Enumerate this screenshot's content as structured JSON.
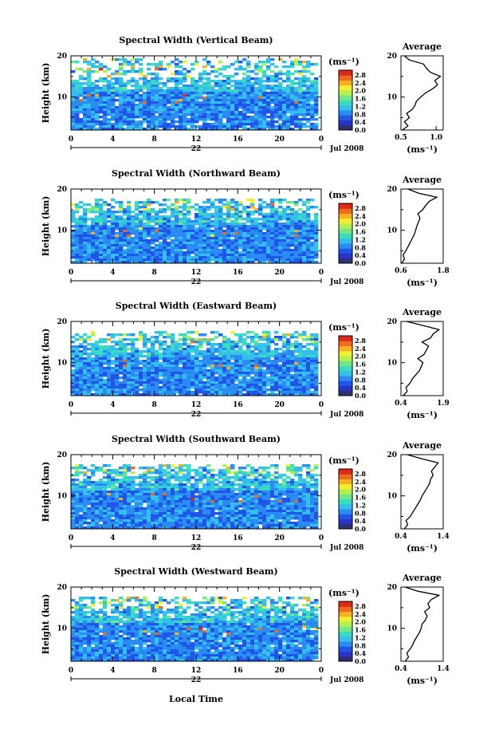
{
  "figure": {
    "xlabel": "Local Time",
    "ylabel": "Height (km)",
    "date_label": "Jul 2008",
    "day_label": "22",
    "unit_label": "(ms⁻¹)",
    "avg_unit_label": "(ms⁻¹)",
    "avg_title": "Average",
    "colorbar_ticks": [
      "0.0",
      "0.4",
      "0.8",
      "1.2",
      "1.6",
      "2.0",
      "2.4",
      "2.8"
    ],
    "colorscale": [
      "#303070",
      "#2a33c8",
      "#1f55e8",
      "#2a8cf2",
      "#33c0ec",
      "#38dcc0",
      "#70e888",
      "#b4f050",
      "#f0f030",
      "#f8b020",
      "#f06c1c",
      "#e02818"
    ]
  },
  "chart_data": [
    {
      "type": "heatmap",
      "title": "Spectral Width (Vertical Beam)",
      "x_ticks": [
        "0",
        "4",
        "8",
        "12",
        "16",
        "20",
        "0"
      ],
      "y_ticks": [
        "10",
        "20"
      ],
      "xlim": [
        0,
        24
      ],
      "ylim": [
        2,
        20
      ],
      "avg_profile": {
        "type": "line",
        "title": "Average",
        "x_ticks": [
          "0.5",
          "1.0"
        ],
        "xlim": [
          0.5,
          1.1
        ],
        "ylim": [
          2,
          20
        ],
        "height": [
          2,
          3,
          4,
          5,
          6,
          7,
          8,
          9,
          10,
          11,
          12,
          13,
          14,
          15,
          16,
          17,
          18,
          19,
          20
        ],
        "value": [
          0.52,
          0.6,
          0.55,
          0.62,
          0.58,
          0.66,
          0.7,
          0.72,
          0.78,
          0.85,
          0.95,
          1.02,
          0.98,
          1.06,
          0.92,
          0.86,
          0.82,
          0.62,
          0.55
        ]
      }
    },
    {
      "type": "heatmap",
      "title": "Spectral Width (Northward Beam)",
      "x_ticks": [
        "0",
        "4",
        "8",
        "12",
        "16",
        "20",
        "0"
      ],
      "y_ticks": [
        "10",
        "20"
      ],
      "xlim": [
        0,
        24
      ],
      "ylim": [
        2,
        20
      ],
      "avg_profile": {
        "type": "line",
        "title": "Average",
        "x_ticks": [
          "0.6",
          "1.8"
        ],
        "xlim": [
          0.6,
          1.8
        ],
        "ylim": [
          2,
          20
        ],
        "height": [
          2,
          3,
          4,
          5,
          6,
          7,
          8,
          9,
          10,
          11,
          12,
          13,
          14,
          15,
          16,
          17,
          18,
          19,
          20
        ],
        "value": [
          0.62,
          0.7,
          0.66,
          0.74,
          0.8,
          0.86,
          0.92,
          0.98,
          1.02,
          1.05,
          1.1,
          1.14,
          1.08,
          1.22,
          1.3,
          1.4,
          1.62,
          1.1,
          0.8
        ]
      }
    },
    {
      "type": "heatmap",
      "title": "Spectral Width (Eastward Beam)",
      "x_ticks": [
        "0",
        "4",
        "8",
        "12",
        "16",
        "20",
        "0"
      ],
      "y_ticks": [
        "10",
        "20"
      ],
      "xlim": [
        0,
        24
      ],
      "ylim": [
        2,
        20
      ],
      "avg_profile": {
        "type": "line",
        "title": "Average",
        "x_ticks": [
          "0.4",
          "1.9"
        ],
        "xlim": [
          0.4,
          1.9
        ],
        "ylim": [
          2,
          20
        ],
        "height": [
          2,
          3,
          4,
          5,
          6,
          7,
          8,
          9,
          10,
          11,
          12,
          13,
          14,
          15,
          16,
          17,
          18,
          19,
          20
        ],
        "value": [
          0.48,
          0.62,
          0.58,
          0.72,
          0.8,
          0.92,
          1.05,
          1.12,
          1.18,
          1.0,
          1.22,
          1.3,
          1.38,
          1.15,
          1.45,
          1.55,
          1.75,
          1.2,
          0.6
        ]
      }
    },
    {
      "type": "heatmap",
      "title": "Spectral Width (Southward Beam)",
      "x_ticks": [
        "0",
        "4",
        "8",
        "12",
        "16",
        "20",
        "0"
      ],
      "y_ticks": [
        "10",
        "20"
      ],
      "xlim": [
        0,
        24
      ],
      "ylim": [
        2,
        20
      ],
      "avg_profile": {
        "type": "line",
        "title": "Average",
        "x_ticks": [
          "0.4",
          "1.4"
        ],
        "xlim": [
          0.4,
          1.4
        ],
        "ylim": [
          2,
          20
        ],
        "height": [
          2,
          3,
          4,
          5,
          6,
          7,
          8,
          9,
          10,
          11,
          12,
          13,
          14,
          15,
          16,
          17,
          18,
          19,
          20
        ],
        "value": [
          0.48,
          0.56,
          0.52,
          0.62,
          0.68,
          0.74,
          0.8,
          0.86,
          0.9,
          0.96,
          1.02,
          1.08,
          1.1,
          1.16,
          1.12,
          1.2,
          1.28,
          0.9,
          0.55
        ]
      }
    },
    {
      "type": "heatmap",
      "title": "Spectral Width (Westward Beam)",
      "x_ticks": [
        "0",
        "4",
        "8",
        "12",
        "16",
        "20",
        "0"
      ],
      "y_ticks": [
        "10",
        "20"
      ],
      "xlim": [
        0,
        24
      ],
      "ylim": [
        2,
        20
      ],
      "avg_profile": {
        "type": "line",
        "title": "Average",
        "x_ticks": [
          "0.4",
          "1.4"
        ],
        "xlim": [
          0.4,
          1.4
        ],
        "ylim": [
          2,
          20
        ],
        "height": [
          2,
          3,
          4,
          5,
          6,
          7,
          8,
          9,
          10,
          11,
          12,
          13,
          14,
          15,
          16,
          17,
          18,
          19,
          20
        ],
        "value": [
          0.5,
          0.58,
          0.54,
          0.62,
          0.68,
          0.72,
          0.78,
          0.84,
          0.88,
          0.9,
          0.98,
          1.02,
          0.96,
          1.08,
          1.04,
          1.12,
          1.3,
          0.8,
          0.5
        ]
      }
    }
  ]
}
